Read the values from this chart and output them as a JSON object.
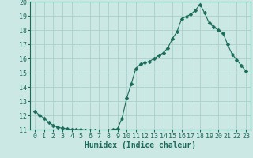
{
  "x": [
    0,
    0.5,
    1,
    1.5,
    2,
    2.5,
    3,
    3.5,
    4,
    4.5,
    5,
    5.5,
    6,
    6.5,
    7,
    7.5,
    8,
    8.5,
    9,
    9.5,
    10,
    10.5,
    11,
    11.5,
    12,
    12.5,
    13,
    13.5,
    14,
    14.5,
    15,
    15.5,
    16,
    16.5,
    17,
    17.5,
    18,
    18.5,
    19,
    19.5,
    20,
    20.5,
    21,
    21.5,
    22,
    22.5,
    23
  ],
  "y": [
    12.3,
    12.0,
    11.8,
    11.5,
    11.3,
    11.15,
    11.1,
    11.05,
    11.0,
    11.0,
    11.0,
    10.97,
    10.95,
    10.92,
    10.88,
    10.88,
    10.95,
    11.0,
    11.05,
    11.8,
    13.2,
    14.2,
    15.3,
    15.6,
    15.7,
    15.8,
    16.0,
    16.2,
    16.4,
    16.75,
    17.4,
    17.9,
    18.8,
    18.95,
    19.1,
    19.4,
    19.8,
    19.2,
    18.5,
    18.2,
    18.0,
    17.8,
    17.0,
    16.3,
    15.9,
    15.5,
    15.1
  ],
  "line_color": "#1a6b5a",
  "marker": "D",
  "marker_size": 2.5,
  "bg_color": "#cce8e4",
  "grid_color": "#aad0ca",
  "xlabel": "Humidex (Indice chaleur)",
  "ylim": [
    11,
    20
  ],
  "xlim": [
    -0.5,
    23.5
  ],
  "yticks": [
    11,
    12,
    13,
    14,
    15,
    16,
    17,
    18,
    19,
    20
  ],
  "xticks": [
    0,
    1,
    2,
    3,
    4,
    5,
    6,
    7,
    8,
    9,
    10,
    11,
    12,
    13,
    14,
    15,
    16,
    17,
    18,
    19,
    20,
    21,
    22,
    23
  ],
  "label_fontsize": 7,
  "tick_fontsize": 6
}
